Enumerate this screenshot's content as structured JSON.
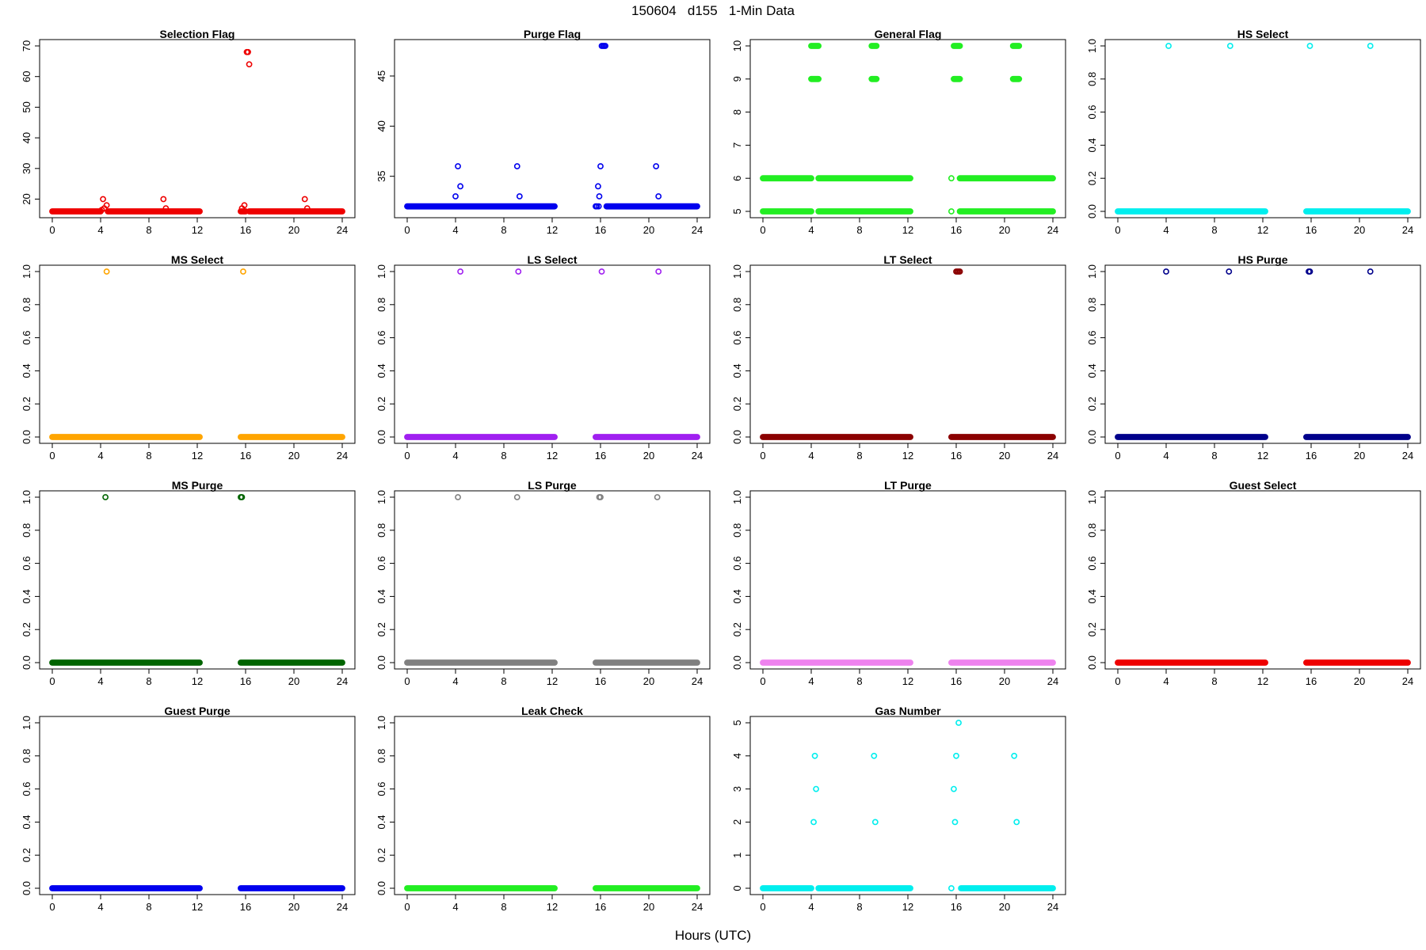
{
  "figure": {
    "title": "150604   d155   1-Min Data",
    "xlabel": "Hours (UTC)"
  },
  "chart_data": [
    {
      "type": "scatter",
      "title": "Selection Flag",
      "color": "#ee0000",
      "xlim": [
        0,
        24
      ],
      "ylim": [
        16,
        70
      ],
      "xticks": [
        0,
        4,
        8,
        12,
        16,
        20,
        24
      ],
      "yticks": [
        20,
        30,
        40,
        50,
        60,
        70
      ],
      "segments": [
        {
          "x": [
            0,
            4.0
          ],
          "y": 16
        },
        {
          "x": [
            4.6,
            12.2
          ],
          "y": 16
        },
        {
          "x": [
            15.6,
            16.0
          ],
          "y": 16
        },
        {
          "x": [
            16.3,
            24
          ],
          "y": 16
        }
      ],
      "points": [
        [
          4.2,
          20
        ],
        [
          4.3,
          17
        ],
        [
          4.5,
          18
        ],
        [
          4.1,
          16.5
        ],
        [
          9.2,
          20
        ],
        [
          9.4,
          17
        ],
        [
          15.7,
          17
        ],
        [
          15.9,
          18
        ],
        [
          16.1,
          68
        ],
        [
          16.2,
          68
        ],
        [
          16.3,
          64
        ],
        [
          20.9,
          20
        ],
        [
          21.1,
          17
        ]
      ]
    },
    {
      "type": "scatter",
      "title": "Purge Flag",
      "color": "#0000ee",
      "xlim": [
        0,
        24
      ],
      "ylim": [
        31.5,
        48
      ],
      "xticks": [
        0,
        4,
        8,
        12,
        16,
        20,
        24
      ],
      "yticks": [
        35,
        40,
        45
      ],
      "segments": [
        {
          "x": [
            0,
            12.2
          ],
          "y": 32
        },
        {
          "x": [
            16.5,
            24
          ],
          "y": 32
        }
      ],
      "points": [
        [
          4.0,
          33
        ],
        [
          4.2,
          36
        ],
        [
          4.4,
          34
        ],
        [
          9.1,
          36
        ],
        [
          9.3,
          33
        ],
        [
          15.6,
          32
        ],
        [
          15.8,
          34
        ],
        [
          15.9,
          33
        ],
        [
          16.0,
          36
        ],
        [
          15.7,
          32
        ],
        [
          15.85,
          32
        ],
        [
          16.1,
          48
        ],
        [
          16.2,
          48
        ],
        [
          16.3,
          48
        ],
        [
          16.4,
          48
        ],
        [
          20.6,
          36
        ],
        [
          20.8,
          33
        ]
      ]
    },
    {
      "type": "scatter",
      "title": "General Flag",
      "color": "#22ee22",
      "xlim": [
        0,
        24
      ],
      "ylim": [
        5,
        10
      ],
      "xticks": [
        0,
        4,
        8,
        12,
        16,
        20,
        24
      ],
      "yticks": [
        5,
        6,
        7,
        8,
        9,
        10
      ],
      "segments": [
        {
          "x": [
            0,
            4.0
          ],
          "y": 5
        },
        {
          "x": [
            4.6,
            12.2
          ],
          "y": 5
        },
        {
          "x": [
            16.3,
            24
          ],
          "y": 5
        },
        {
          "x": [
            0,
            4.0
          ],
          "y": 6
        },
        {
          "x": [
            4.6,
            12.2
          ],
          "y": 6
        },
        {
          "x": [
            16.3,
            24
          ],
          "y": 6
        },
        {
          "x": [
            4.0,
            4.6
          ],
          "y": 10
        },
        {
          "x": [
            4.0,
            4.6
          ],
          "y": 9
        },
        {
          "x": [
            9.0,
            9.4
          ],
          "y": 10
        },
        {
          "x": [
            9.0,
            9.4
          ],
          "y": 9
        },
        {
          "x": [
            15.8,
            16.3
          ],
          "y": 10
        },
        {
          "x": [
            15.8,
            16.3
          ],
          "y": 9
        },
        {
          "x": [
            20.7,
            21.2
          ],
          "y": 10
        },
        {
          "x": [
            20.7,
            21.2
          ],
          "y": 9
        }
      ],
      "points": [
        [
          15.6,
          6
        ],
        [
          15.6,
          5
        ]
      ]
    },
    {
      "type": "scatter",
      "title": "HS Select",
      "color": "#00eeee",
      "xlim": [
        0,
        24
      ],
      "ylim": [
        0,
        1
      ],
      "xticks": [
        0,
        4,
        8,
        12,
        16,
        20,
        24
      ],
      "yticks": [
        0.0,
        0.2,
        0.4,
        0.6,
        0.8,
        1.0
      ],
      "segments": [
        {
          "x": [
            0,
            12.2
          ],
          "y": 0
        },
        {
          "x": [
            15.6,
            24
          ],
          "y": 0
        }
      ],
      "points": [
        [
          4.2,
          1
        ],
        [
          9.3,
          1
        ],
        [
          15.9,
          1
        ],
        [
          20.9,
          1
        ]
      ]
    },
    {
      "type": "scatter",
      "title": "MS Select",
      "color": "#ffa500",
      "xlim": [
        0,
        24
      ],
      "ylim": [
        0,
        1
      ],
      "xticks": [
        0,
        4,
        8,
        12,
        16,
        20,
        24
      ],
      "yticks": [
        0.0,
        0.2,
        0.4,
        0.6,
        0.8,
        1.0
      ],
      "segments": [
        {
          "x": [
            0,
            12.2
          ],
          "y": 0
        },
        {
          "x": [
            15.6,
            24
          ],
          "y": 0
        }
      ],
      "points": [
        [
          4.5,
          1
        ],
        [
          15.8,
          1
        ]
      ]
    },
    {
      "type": "scatter",
      "title": "LS Select",
      "color": "#a020f0",
      "xlim": [
        0,
        24
      ],
      "ylim": [
        0,
        1
      ],
      "xticks": [
        0,
        4,
        8,
        12,
        16,
        20,
        24
      ],
      "yticks": [
        0.0,
        0.2,
        0.4,
        0.6,
        0.8,
        1.0
      ],
      "segments": [
        {
          "x": [
            0,
            12.2
          ],
          "y": 0
        },
        {
          "x": [
            15.6,
            24
          ],
          "y": 0
        }
      ],
      "points": [
        [
          4.4,
          1
        ],
        [
          9.2,
          1
        ],
        [
          16.1,
          1
        ],
        [
          20.8,
          1
        ]
      ]
    },
    {
      "type": "scatter",
      "title": "LT Select",
      "color": "#8b0000",
      "xlim": [
        0,
        24
      ],
      "ylim": [
        0,
        1
      ],
      "xticks": [
        0,
        4,
        8,
        12,
        16,
        20,
        24
      ],
      "yticks": [
        0.0,
        0.2,
        0.4,
        0.6,
        0.8,
        1.0
      ],
      "segments": [
        {
          "x": [
            0,
            12.2
          ],
          "y": 0
        },
        {
          "x": [
            15.6,
            24
          ],
          "y": 0
        }
      ],
      "points": [
        [
          16.0,
          1
        ],
        [
          16.1,
          1
        ],
        [
          16.2,
          1
        ],
        [
          16.3,
          1
        ]
      ]
    },
    {
      "type": "scatter",
      "title": "HS Purge",
      "color": "#00008b",
      "xlim": [
        0,
        24
      ],
      "ylim": [
        0,
        1
      ],
      "xticks": [
        0,
        4,
        8,
        12,
        16,
        20,
        24
      ],
      "yticks": [
        0.0,
        0.2,
        0.4,
        0.6,
        0.8,
        1.0
      ],
      "segments": [
        {
          "x": [
            0,
            12.2
          ],
          "y": 0
        },
        {
          "x": [
            15.6,
            24
          ],
          "y": 0
        }
      ],
      "points": [
        [
          4.0,
          1
        ],
        [
          9.2,
          1
        ],
        [
          15.8,
          1
        ],
        [
          15.9,
          1
        ],
        [
          20.9,
          1
        ]
      ]
    },
    {
      "type": "scatter",
      "title": "MS Purge",
      "color": "#006400",
      "xlim": [
        0,
        24
      ],
      "ylim": [
        0,
        1
      ],
      "xticks": [
        0,
        4,
        8,
        12,
        16,
        20,
        24
      ],
      "yticks": [
        0.0,
        0.2,
        0.4,
        0.6,
        0.8,
        1.0
      ],
      "segments": [
        {
          "x": [
            0,
            12.2
          ],
          "y": 0
        },
        {
          "x": [
            15.6,
            24
          ],
          "y": 0
        }
      ],
      "points": [
        [
          4.4,
          1
        ],
        [
          15.6,
          1
        ],
        [
          15.7,
          1
        ]
      ]
    },
    {
      "type": "scatter",
      "title": "LS Purge",
      "color": "#808080",
      "xlim": [
        0,
        24
      ],
      "ylim": [
        0,
        1
      ],
      "xticks": [
        0,
        4,
        8,
        12,
        16,
        20,
        24
      ],
      "yticks": [
        0.0,
        0.2,
        0.4,
        0.6,
        0.8,
        1.0
      ],
      "segments": [
        {
          "x": [
            0,
            12.2
          ],
          "y": 0
        },
        {
          "x": [
            15.6,
            24
          ],
          "y": 0
        }
      ],
      "points": [
        [
          4.2,
          1
        ],
        [
          9.1,
          1
        ],
        [
          15.9,
          1
        ],
        [
          16.0,
          1
        ],
        [
          20.7,
          1
        ]
      ]
    },
    {
      "type": "scatter",
      "title": "LT Purge",
      "color": "#ee82ee",
      "xlim": [
        0,
        24
      ],
      "ylim": [
        0,
        1
      ],
      "xticks": [
        0,
        4,
        8,
        12,
        16,
        20,
        24
      ],
      "yticks": [
        0.0,
        0.2,
        0.4,
        0.6,
        0.8,
        1.0
      ],
      "segments": [
        {
          "x": [
            0,
            12.2
          ],
          "y": 0
        },
        {
          "x": [
            15.6,
            24
          ],
          "y": 0
        }
      ],
      "points": []
    },
    {
      "type": "scatter",
      "title": "Guest Select",
      "color": "#ee0000",
      "xlim": [
        0,
        24
      ],
      "ylim": [
        0,
        1
      ],
      "xticks": [
        0,
        4,
        8,
        12,
        16,
        20,
        24
      ],
      "yticks": [
        0.0,
        0.2,
        0.4,
        0.6,
        0.8,
        1.0
      ],
      "segments": [
        {
          "x": [
            0,
            12.2
          ],
          "y": 0
        },
        {
          "x": [
            15.6,
            24
          ],
          "y": 0
        }
      ],
      "points": []
    },
    {
      "type": "scatter",
      "title": "Guest Purge",
      "color": "#0000ee",
      "xlim": [
        0,
        24
      ],
      "ylim": [
        0,
        1
      ],
      "xticks": [
        0,
        4,
        8,
        12,
        16,
        20,
        24
      ],
      "yticks": [
        0.0,
        0.2,
        0.4,
        0.6,
        0.8,
        1.0
      ],
      "segments": [
        {
          "x": [
            0,
            12.2
          ],
          "y": 0
        },
        {
          "x": [
            15.6,
            24
          ],
          "y": 0
        }
      ],
      "points": []
    },
    {
      "type": "scatter",
      "title": "Leak Check",
      "color": "#22ee22",
      "xlim": [
        0,
        24
      ],
      "ylim": [
        0,
        1
      ],
      "xticks": [
        0,
        4,
        8,
        12,
        16,
        20,
        24
      ],
      "yticks": [
        0.0,
        0.2,
        0.4,
        0.6,
        0.8,
        1.0
      ],
      "segments": [
        {
          "x": [
            0,
            12.2
          ],
          "y": 0
        },
        {
          "x": [
            15.6,
            24
          ],
          "y": 0
        }
      ],
      "points": []
    },
    {
      "type": "scatter",
      "title": "Gas Number",
      "color": "#00eeee",
      "xlim": [
        0,
        24
      ],
      "ylim": [
        0,
        5
      ],
      "xticks": [
        0,
        4,
        8,
        12,
        16,
        20,
        24
      ],
      "yticks": [
        0,
        1,
        2,
        3,
        4,
        5
      ],
      "segments": [
        {
          "x": [
            0,
            4.0
          ],
          "y": 0
        },
        {
          "x": [
            4.6,
            12.2
          ],
          "y": 0
        },
        {
          "x": [
            16.4,
            24
          ],
          "y": 0
        }
      ],
      "points": [
        [
          15.6,
          0
        ],
        [
          4.2,
          2
        ],
        [
          4.4,
          3
        ],
        [
          4.3,
          4
        ],
        [
          9.2,
          4
        ],
        [
          9.3,
          2
        ],
        [
          15.8,
          3
        ],
        [
          15.9,
          2
        ],
        [
          16.0,
          4
        ],
        [
          16.2,
          5
        ],
        [
          20.8,
          4
        ],
        [
          21.0,
          2
        ]
      ]
    }
  ]
}
